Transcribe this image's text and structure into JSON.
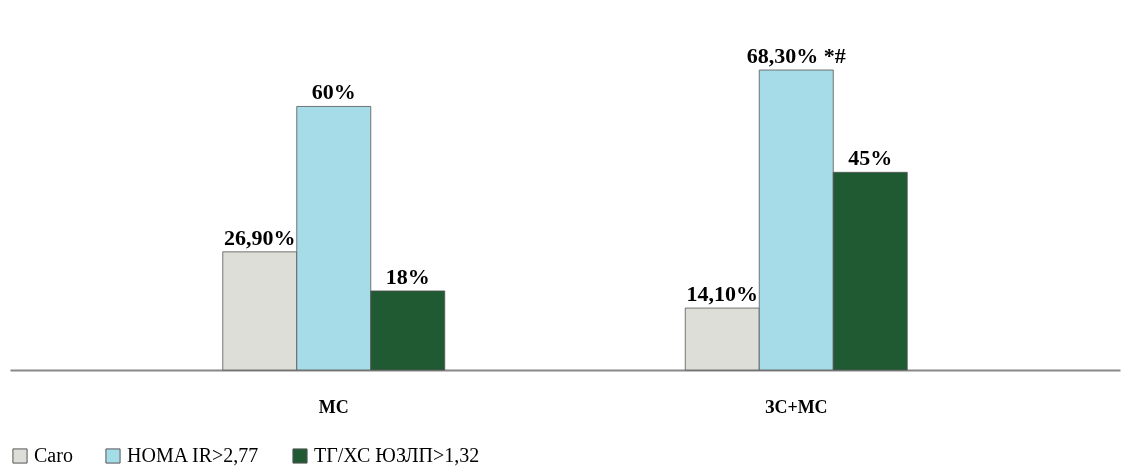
{
  "chart_data": {
    "type": "bar",
    "categories": [
      "МС",
      "ЗС+МС"
    ],
    "series": [
      {
        "name": "Caro",
        "color": "#deded8",
        "values": [
          26.9,
          14.1
        ],
        "value_labels": [
          "26,90%",
          "14,10%"
        ]
      },
      {
        "name": "HOMA IR>2,77",
        "color": "#a6dbe8",
        "values": [
          60,
          68.3
        ],
        "value_labels": [
          "60%",
          "68,30% *#"
        ]
      },
      {
        "name": "ТГ/ХС ЮЗЛП>1,32",
        "color": "#1f5a33",
        "values": [
          18,
          45
        ],
        "value_labels": [
          "18%",
          "45%"
        ]
      }
    ],
    "legend": "bottom"
  }
}
